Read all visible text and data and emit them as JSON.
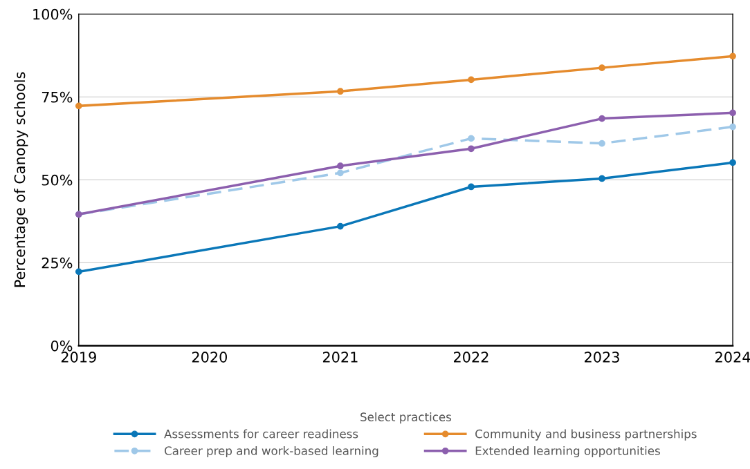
{
  "chart_data": {
    "type": "line",
    "ylabel": "Percentage of Canopy schools",
    "legend_title": "Select practices",
    "x": [
      2019,
      2021,
      2022,
      2023,
      2024
    ],
    "series": [
      {
        "name": "Assessments for career readiness",
        "color": "#0a77b8",
        "values": [
          22.3,
          36.0,
          47.9,
          50.4,
          55.2
        ]
      },
      {
        "name": "Career prep and work-based learning",
        "color": "#9fc8e8",
        "line_style": "dashed",
        "values": [
          39.6,
          52.1,
          62.5,
          61.0,
          66.0
        ]
      },
      {
        "name": "Community and business partnerships",
        "color": "#e58b2d",
        "values": [
          72.3,
          76.7,
          80.2,
          83.8,
          87.3
        ]
      },
      {
        "name": "Extended learning opportunities",
        "color": "#8c5fae",
        "values": [
          39.6,
          54.2,
          59.4,
          68.5,
          70.2
        ]
      }
    ],
    "xlim": [
      2019,
      2024
    ],
    "xticks": [
      2019,
      2020,
      2021,
      2022,
      2023,
      2024
    ],
    "ylim": [
      0,
      100
    ],
    "yticks": [
      {
        "value": 0,
        "label": "0%"
      },
      {
        "value": 25,
        "label": "25%"
      },
      {
        "value": 50,
        "label": "50%"
      },
      {
        "value": 75,
        "label": "75%"
      },
      {
        "value": 100,
        "label": "100%"
      }
    ],
    "grid": "y",
    "legend": "bottom",
    "marker": "circle",
    "line_style": "solid"
  }
}
